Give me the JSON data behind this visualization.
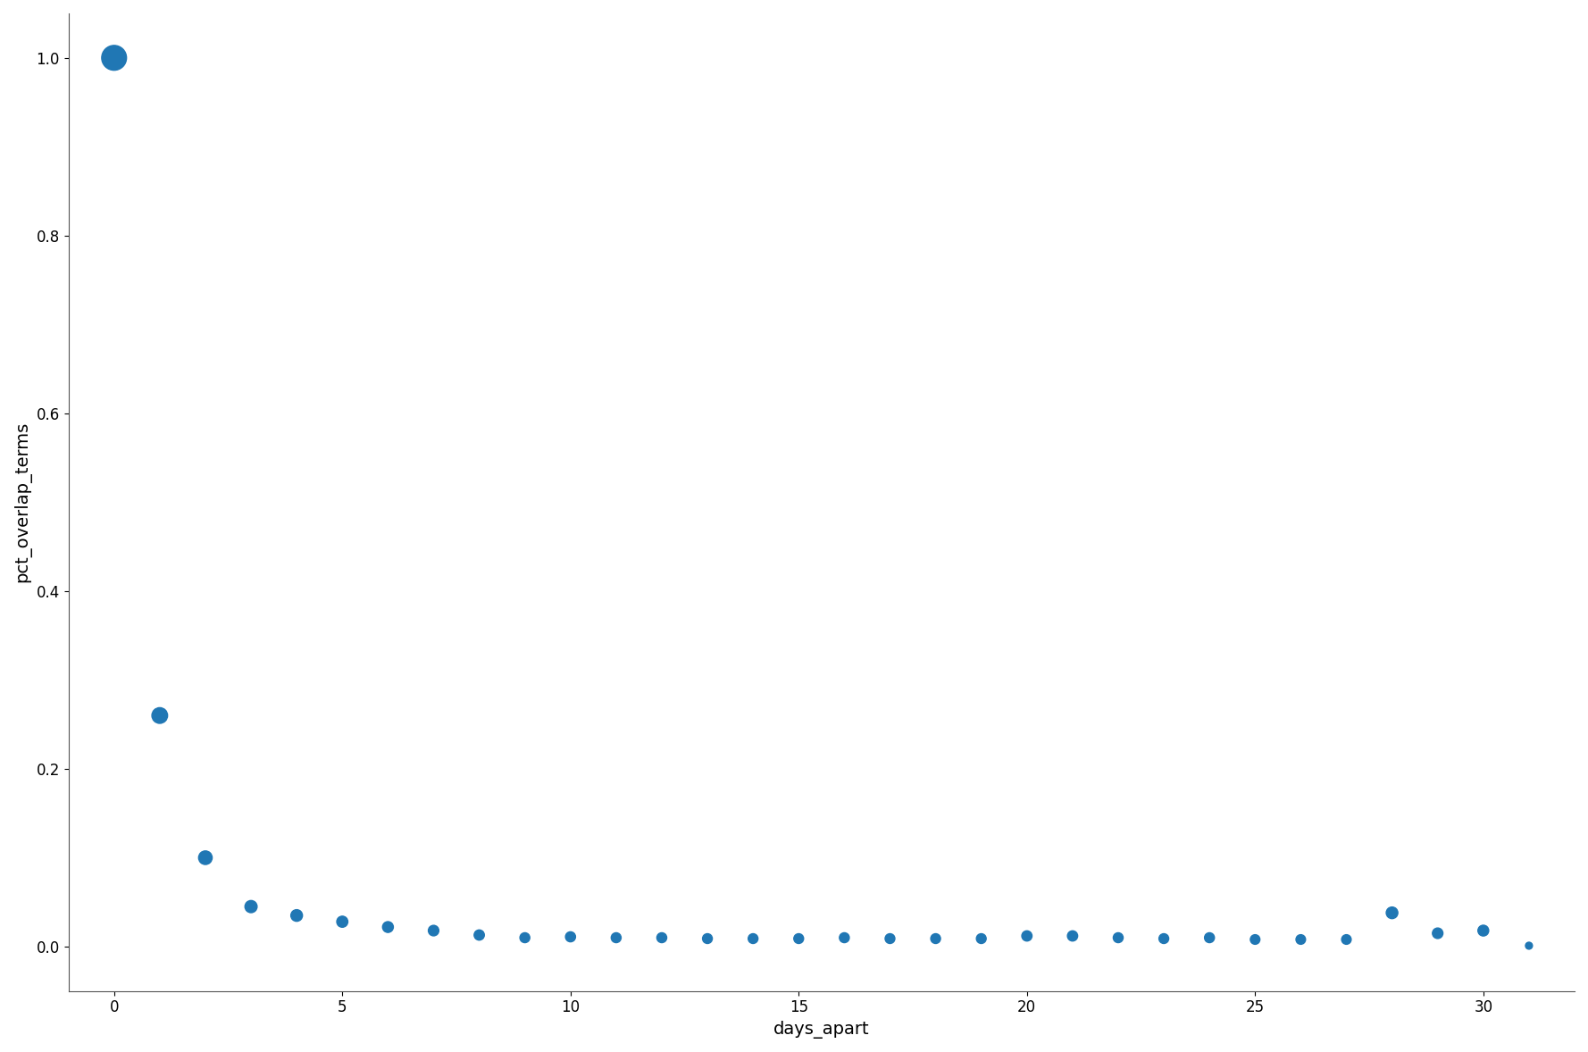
{
  "x": [
    0,
    1,
    2,
    3,
    4,
    5,
    6,
    7,
    8,
    9,
    10,
    11,
    12,
    13,
    14,
    15,
    16,
    17,
    18,
    19,
    20,
    21,
    22,
    23,
    24,
    25,
    26,
    27,
    28,
    29,
    30,
    31
  ],
  "y": [
    1.0,
    0.26,
    0.1,
    0.045,
    0.035,
    0.028,
    0.022,
    0.018,
    0.013,
    0.01,
    0.011,
    0.01,
    0.01,
    0.009,
    0.009,
    0.009,
    0.01,
    0.009,
    0.009,
    0.009,
    0.012,
    0.012,
    0.01,
    0.009,
    0.01,
    0.008,
    0.008,
    0.008,
    0.038,
    0.015,
    0.018,
    0.001
  ],
  "counts": [
    5000,
    2000,
    1500,
    1200,
    1100,
    1000,
    950,
    900,
    850,
    800,
    820,
    800,
    800,
    780,
    780,
    780,
    800,
    780,
    780,
    780,
    850,
    850,
    800,
    780,
    800,
    750,
    750,
    750,
    1100,
    900,
    950,
    400
  ],
  "color": "#2077b4",
  "xlabel": "days_apart",
  "ylabel": "pct_overlap_terms",
  "xlim": [
    -1,
    32
  ],
  "ylim": [
    -0.05,
    1.05
  ],
  "background_color": "#ffffff",
  "size_scale": 0.08
}
